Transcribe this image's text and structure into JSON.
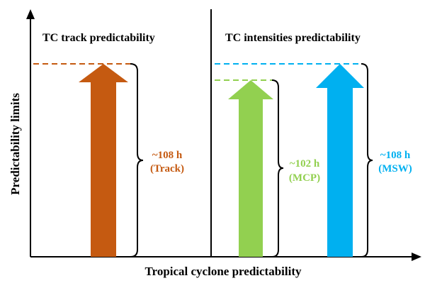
{
  "axes": {
    "y_label": "Predictability limits",
    "x_label": "Tropical cyclone predictability"
  },
  "panels": [
    {
      "title": "TC track predictability",
      "arrows": [
        {
          "id": "track",
          "value_text": "~108 h",
          "variable_text": "(Track)",
          "hours": 108,
          "color": "#c55a11"
        }
      ]
    },
    {
      "title": "TC intensities predictability",
      "arrows": [
        {
          "id": "mcp",
          "value_text": "~102 h",
          "variable_text": "(MCP)",
          "hours": 102,
          "color": "#92d050"
        },
        {
          "id": "msw",
          "value_text": "~108 h",
          "variable_text": "(MSW)",
          "hours": 108,
          "color": "#00b0f0"
        }
      ]
    }
  ]
}
